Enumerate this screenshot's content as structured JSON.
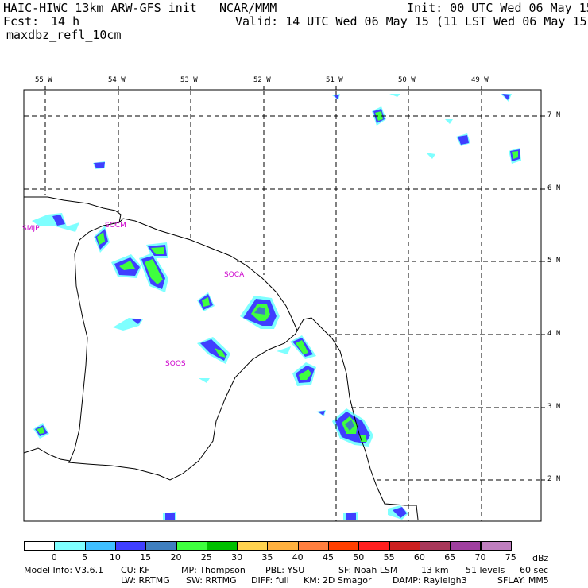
{
  "header": {
    "model_title": "HAIC-HIWC 13km ARW-GFS init",
    "org": "NCAR/MMM",
    "init": "Init: 00 UTC Wed 06 May 15",
    "fcst_label": "Fcst:",
    "fcst_value": "14 h",
    "valid": "Valid: 14 UTC Wed 06 May 15 (11 LST Wed 06 May 15)",
    "field": "maxdbz_refl_10cm"
  },
  "lon_labels": [
    "55 W",
    "54 W",
    "53 W",
    "52 W",
    "51 W",
    "50 W",
    "49 W"
  ],
  "lat_labels": [
    "7 N",
    "6 N",
    "5 N",
    "4 N",
    "3 N",
    "2 N"
  ],
  "stations": [
    "SMJP",
    "SOCM",
    "SOCA",
    "SOOS"
  ],
  "colorbar": {
    "levels": [
      "0",
      "5",
      "10",
      "15",
      "20",
      "25",
      "30",
      "35",
      "40",
      "45",
      "50",
      "55",
      "60",
      "65",
      "70",
      "75"
    ],
    "unit": "dBz",
    "colors": [
      "#ffffff",
      "#7fffff",
      "#3fbfff",
      "#3f3fff",
      "#3f7fbf",
      "#3fff3f",
      "#00c000",
      "#ffd34f",
      "#ffb13f",
      "#ff7f3f",
      "#ff3f00",
      "#ff1f1f",
      "#cc1f1f",
      "#a8385a",
      "#9f3f9f",
      "#bf7fbf"
    ]
  },
  "model_info": {
    "line1": [
      "Model Info: V3.6.1",
      "CU: KF",
      "MP: Thompson",
      "PBL: YSU",
      "SF: Noah LSM",
      "13 km",
      "51 levels",
      "60 sec"
    ],
    "line2": [
      "LW: RRTMG",
      "SW: RRTMG",
      "DIFF: full",
      "KM: 2D Smagor",
      "DAMP: Rayleigh3",
      "SFLAY: MM5"
    ]
  }
}
